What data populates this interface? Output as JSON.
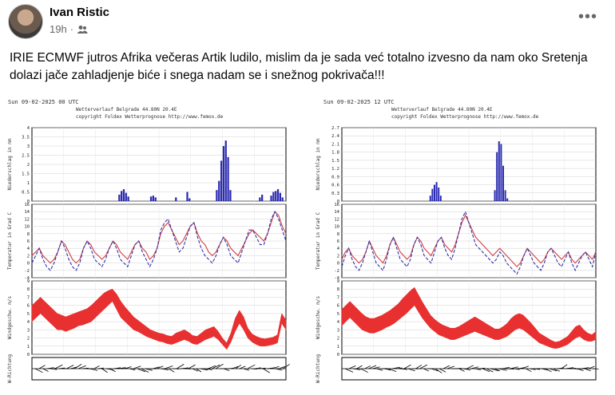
{
  "post": {
    "author": "Ivan Ristic",
    "time": "19h",
    "dot": "·",
    "audience_icon": "friends-icon",
    "more_icon": "more-icon",
    "text": "IRIE ECMWF jutros Afrika večeras Artik ludilo, mislim da je sada već totalno izvesno da nam oko Sretenja dolazi jače zahladjenje biće i snega nadam se i snežnog pokrivača!!!"
  },
  "charts": [
    {
      "header": "Sun 09-02-2025 00 UTC",
      "station": "Wetterverlauf Belgrade   44.80N 20.4E",
      "copyright": "copyright Foldex Wetterprognose http://www.femox.de",
      "precip_label": "Niederschlag in mm",
      "precip_ticks": [
        "0",
        "0.5",
        "1",
        "1.5",
        "2",
        "2.5",
        "3",
        "3.5",
        "4"
      ],
      "temp_label": "Temperatur in Grad C",
      "temp_ticks": [
        "-4",
        "-2",
        "0",
        "2",
        "4",
        "6",
        "8",
        "10",
        "12",
        "14",
        "16"
      ],
      "wind_label": "Windgeschw. m/s",
      "wind_ticks": [
        "0",
        "1",
        "2",
        "3",
        "4",
        "5",
        "6",
        "7",
        "8",
        "9"
      ],
      "dir_label": "W-Richtung"
    },
    {
      "header": "Sun 09-02-2025 12 UTC",
      "station": "Wetterverlauf Belgrade   44.80N 20.4E",
      "copyright": "copyright Foldex Wetterprognose http://www.femox.de",
      "precip_label": "Niederschlag in mm",
      "precip_ticks": [
        "0",
        "0.3",
        "0.6",
        "0.9",
        "1.2",
        "1.5",
        "1.8",
        "2.1",
        "2.4",
        "2.7"
      ],
      "temp_label": "Temperatur in Grad C",
      "temp_ticks": [
        "-4",
        "-2",
        "0",
        "2",
        "4",
        "6",
        "8",
        "10",
        "12",
        "14",
        "16"
      ],
      "wind_label": "Windgeschw. m/s",
      "wind_ticks": [
        "0",
        "1",
        "2",
        "3",
        "4",
        "5",
        "6",
        "7",
        "8",
        "9"
      ],
      "dir_label": "W-Richtung"
    }
  ],
  "chart_data": [
    {
      "type": "bar",
      "ylabel": "Niederschlag in mm",
      "ylim": [
        0,
        4
      ],
      "values": [
        0,
        0,
        0,
        0,
        0,
        0,
        0,
        0,
        0,
        0,
        0,
        0,
        0,
        0,
        0,
        0,
        0,
        0,
        0,
        0,
        0,
        0,
        0,
        0,
        0,
        0,
        0,
        0,
        0,
        0,
        0,
        0,
        0,
        0,
        0,
        0,
        0,
        0,
        0.35,
        0.55,
        0.65,
        0.45,
        0.25,
        0,
        0,
        0,
        0,
        0,
        0,
        0,
        0,
        0,
        0.25,
        0.3,
        0.2,
        0,
        0,
        0,
        0,
        0,
        0,
        0,
        0,
        0.2,
        0,
        0,
        0,
        0,
        0.5,
        0.15,
        0,
        0,
        0,
        0,
        0,
        0,
        0,
        0,
        0,
        0,
        0,
        0.6,
        1.1,
        2.2,
        3.0,
        3.3,
        2.4,
        0.6,
        0,
        0,
        0,
        0,
        0,
        0,
        0,
        0,
        0,
        0,
        0,
        0,
        0.2,
        0.35,
        0,
        0,
        0,
        0.3,
        0.5,
        0.55,
        0.65,
        0.45,
        0.2,
        0
      ],
      "color": "#2b2bb0"
    },
    {
      "type": "line",
      "ylabel": "Temperatur in Grad C",
      "ylim": [
        -4,
        16
      ],
      "series": [
        {
          "values": [
            2,
            3,
            4,
            2,
            1,
            0,
            1,
            3,
            6,
            5,
            3,
            1,
            0,
            1,
            4,
            6,
            5,
            3,
            2,
            1,
            2,
            4,
            6,
            5,
            3,
            2,
            1,
            3,
            5,
            6,
            4,
            3,
            1,
            2,
            4,
            8,
            10,
            11,
            9,
            7,
            5,
            6,
            8,
            10,
            11,
            8,
            6,
            5,
            3,
            2,
            3,
            5,
            7,
            6,
            4,
            3,
            2,
            4,
            6,
            8,
            9,
            8,
            7,
            6,
            8,
            11,
            14,
            13,
            10,
            8
          ],
          "color": "#d04040",
          "style": "solid"
        },
        {
          "values": [
            0,
            2,
            4,
            1,
            -1,
            -2,
            0,
            3,
            6,
            4,
            1,
            -1,
            -2,
            0,
            4,
            6,
            4,
            1,
            0,
            -1,
            1,
            4,
            6,
            4,
            1,
            0,
            -1,
            2,
            5,
            6,
            3,
            1,
            -1,
            1,
            4,
            9,
            11,
            12,
            9,
            6,
            3,
            4,
            7,
            10,
            11,
            7,
            4,
            2,
            1,
            0,
            2,
            5,
            7,
            5,
            2,
            1,
            0,
            3,
            6,
            9,
            9,
            7,
            5,
            5,
            8,
            12,
            14,
            12,
            9,
            6
          ],
          "color": "#3333aa",
          "style": "dashed"
        }
      ]
    },
    {
      "type": "area",
      "ylabel": "Windgeschw. m/s",
      "ylim": [
        0,
        9
      ],
      "lower": [
        4,
        4.5,
        5,
        4.5,
        4,
        3.5,
        3,
        3,
        2.8,
        3,
        3.2,
        3.5,
        3.6,
        3.8,
        4,
        4.5,
        5,
        5.5,
        6,
        6.5,
        5.5,
        4.5,
        4,
        3.5,
        3,
        2.8,
        2.5,
        2.2,
        2,
        1.8,
        1.6,
        1.5,
        1.3,
        1.2,
        1.4,
        1.6,
        1.8,
        1.6,
        1.3,
        1.2,
        1.5,
        1.8,
        2,
        2.2,
        1.8,
        1.2,
        0.6,
        1.5,
        2.8,
        3.8,
        3,
        2,
        1.5,
        1.2,
        1,
        1,
        1.1,
        1.2,
        1.4,
        3.8,
        3
      ],
      "upper": [
        6,
        6.5,
        7,
        6.5,
        6,
        5.5,
        5,
        4.8,
        4.6,
        4.8,
        5,
        5.2,
        5.4,
        5.6,
        6,
        6.5,
        7,
        7.5,
        7.8,
        8,
        7.4,
        6.5,
        5.8,
        5.2,
        4.6,
        4.2,
        3.8,
        3.4,
        3,
        2.8,
        2.6,
        2.5,
        2.3,
        2.2,
        2.6,
        2.8,
        3,
        2.7,
        2.3,
        2.2,
        2.6,
        3,
        3.2,
        3.4,
        2.8,
        2,
        1.4,
        2.6,
        4.4,
        5.4,
        4.6,
        3.2,
        2.5,
        2.2,
        2,
        1.9,
        2,
        2.1,
        2.4,
        5,
        4.2
      ],
      "color": "#e83030"
    },
    {
      "type": "bar",
      "ylabel": "Niederschlag in mm",
      "ylim": [
        0,
        2.7
      ],
      "values": [
        0,
        0,
        0,
        0,
        0,
        0,
        0,
        0,
        0,
        0,
        0,
        0,
        0,
        0,
        0,
        0,
        0,
        0,
        0,
        0,
        0,
        0,
        0,
        0,
        0,
        0,
        0,
        0,
        0,
        0,
        0,
        0,
        0,
        0,
        0,
        0,
        0,
        0,
        0,
        0,
        0,
        0,
        0.2,
        0.45,
        0.6,
        0.7,
        0.5,
        0.2,
        0,
        0,
        0,
        0,
        0,
        0,
        0,
        0,
        0,
        0,
        0,
        0,
        0,
        0,
        0,
        0,
        0,
        0,
        0,
        0,
        0,
        0,
        0,
        0,
        0,
        0.4,
        1.8,
        2.2,
        2.1,
        1.3,
        0.4,
        0.1,
        0,
        0,
        0,
        0,
        0,
        0,
        0,
        0,
        0,
        0,
        0,
        0,
        0,
        0,
        0,
        0,
        0,
        0,
        0,
        0,
        0,
        0,
        0,
        0,
        0,
        0,
        0,
        0,
        0,
        0,
        0,
        0,
        0,
        0,
        0,
        0,
        0,
        0,
        0,
        0,
        0,
        0
      ],
      "color": "#2b2bb0"
    },
    {
      "type": "line",
      "ylabel": "Temperatur in Grad C",
      "ylim": [
        -4,
        16
      ],
      "series": [
        {
          "values": [
            1,
            3,
            4,
            2,
            1,
            0,
            1,
            3,
            6,
            4,
            2,
            1,
            0,
            2,
            5,
            7,
            5,
            3,
            2,
            1,
            2,
            5,
            7,
            6,
            4,
            3,
            2,
            4,
            6,
            7,
            5,
            4,
            3,
            5,
            8,
            11,
            13,
            11,
            9,
            7,
            6,
            5,
            4,
            3,
            2,
            3,
            4,
            3,
            2,
            1,
            0,
            -1,
            0,
            2,
            4,
            3,
            2,
            1,
            0,
            1,
            3,
            4,
            3,
            2,
            1,
            2,
            3,
            1,
            0,
            1,
            2,
            3,
            2,
            1,
            3
          ],
          "color": "#d04040",
          "style": "solid"
        },
        {
          "values": [
            -1,
            2,
            4,
            1,
            -1,
            -2,
            0,
            3,
            6,
            3,
            0,
            -1,
            -2,
            1,
            5,
            7,
            4,
            1,
            0,
            -1,
            1,
            5,
            7,
            5,
            2,
            1,
            0,
            3,
            6,
            7,
            4,
            2,
            1,
            4,
            8,
            12,
            14,
            11,
            8,
            5,
            4,
            3,
            2,
            1,
            0,
            1,
            3,
            2,
            0,
            -1,
            -2,
            -3,
            -1,
            2,
            4,
            2,
            0,
            -1,
            -2,
            0,
            3,
            4,
            2,
            0,
            -1,
            1,
            3,
            0,
            -2,
            0,
            2,
            3,
            1,
            -1,
            3
          ],
          "color": "#3333aa",
          "style": "dashed"
        }
      ]
    },
    {
      "type": "area",
      "ylabel": "Windgeschw. m/s",
      "ylim": [
        0,
        9
      ],
      "lower": [
        3.5,
        4,
        4.5,
        4,
        3.5,
        3,
        2.8,
        2.6,
        2.6,
        2.8,
        3,
        3.3,
        3.5,
        3.8,
        4.2,
        4.6,
        5,
        5.5,
        6,
        5.2,
        4.4,
        3.8,
        3.2,
        2.8,
        2.4,
        2.2,
        2,
        1.8,
        1.8,
        2,
        2.2,
        2.4,
        2.6,
        2.8,
        2.6,
        2.4,
        2.2,
        2,
        1.8,
        1.8,
        2,
        2.2,
        2.6,
        3,
        3.2,
        3,
        2.6,
        2.2,
        1.8,
        1.4,
        1.2,
        1,
        0.8,
        0.7,
        0.8,
        1,
        1.2,
        1.6,
        2,
        2.2,
        1.8,
        1.6,
        1.6,
        1.8
      ],
      "upper": [
        5.5,
        6,
        6.5,
        6,
        5.5,
        5,
        4.6,
        4.4,
        4.4,
        4.6,
        4.8,
        5.1,
        5.4,
        5.8,
        6.2,
        6.8,
        7.3,
        7.8,
        8.2,
        7.3,
        6.4,
        5.6,
        4.8,
        4.3,
        3.9,
        3.6,
        3.4,
        3.2,
        3.2,
        3.4,
        3.7,
        4,
        4.3,
        4.6,
        4.3,
        4,
        3.7,
        3.4,
        3.1,
        3.1,
        3.4,
        3.8,
        4.4,
        4.8,
        5,
        4.8,
        4.3,
        3.8,
        3.2,
        2.6,
        2.3,
        2,
        1.7,
        1.5,
        1.6,
        1.9,
        2.2,
        2.8,
        3.4,
        3.6,
        3,
        2.6,
        2.4,
        2.8
      ],
      "color": "#e83030"
    }
  ]
}
